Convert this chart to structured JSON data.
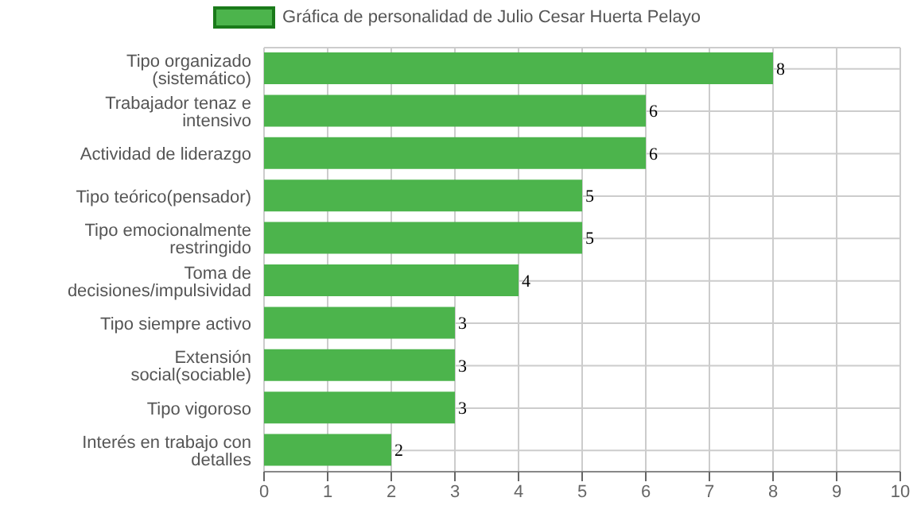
{
  "chart_data": {
    "type": "bar",
    "orientation": "horizontal",
    "categories": [
      "Tipo organizado (sistemático)",
      "Trabajador tenaz e intensivo",
      "Actividad de liderazgo",
      "Tipo teórico(pensador)",
      "Tipo emocionalmente restringido",
      "Toma de decisiones/impulsividad",
      "Tipo siempre activo",
      "Extensión social(sociable)",
      "Tipo vigoroso",
      "Interés en trabajo con detalles"
    ],
    "series": [
      {
        "name": "Gráfica de personalidad de Julio Cesar Huerta Pelayo",
        "color": "#4cb44c",
        "values": [
          8,
          6,
          6,
          5,
          5,
          4,
          3,
          3,
          3,
          2
        ]
      }
    ],
    "xlim": [
      0,
      10
    ],
    "xticks": [
      0,
      1,
      2,
      3,
      4,
      5,
      6,
      7,
      8,
      9,
      10
    ],
    "grid": true,
    "legend": "top",
    "data_labels": true
  }
}
